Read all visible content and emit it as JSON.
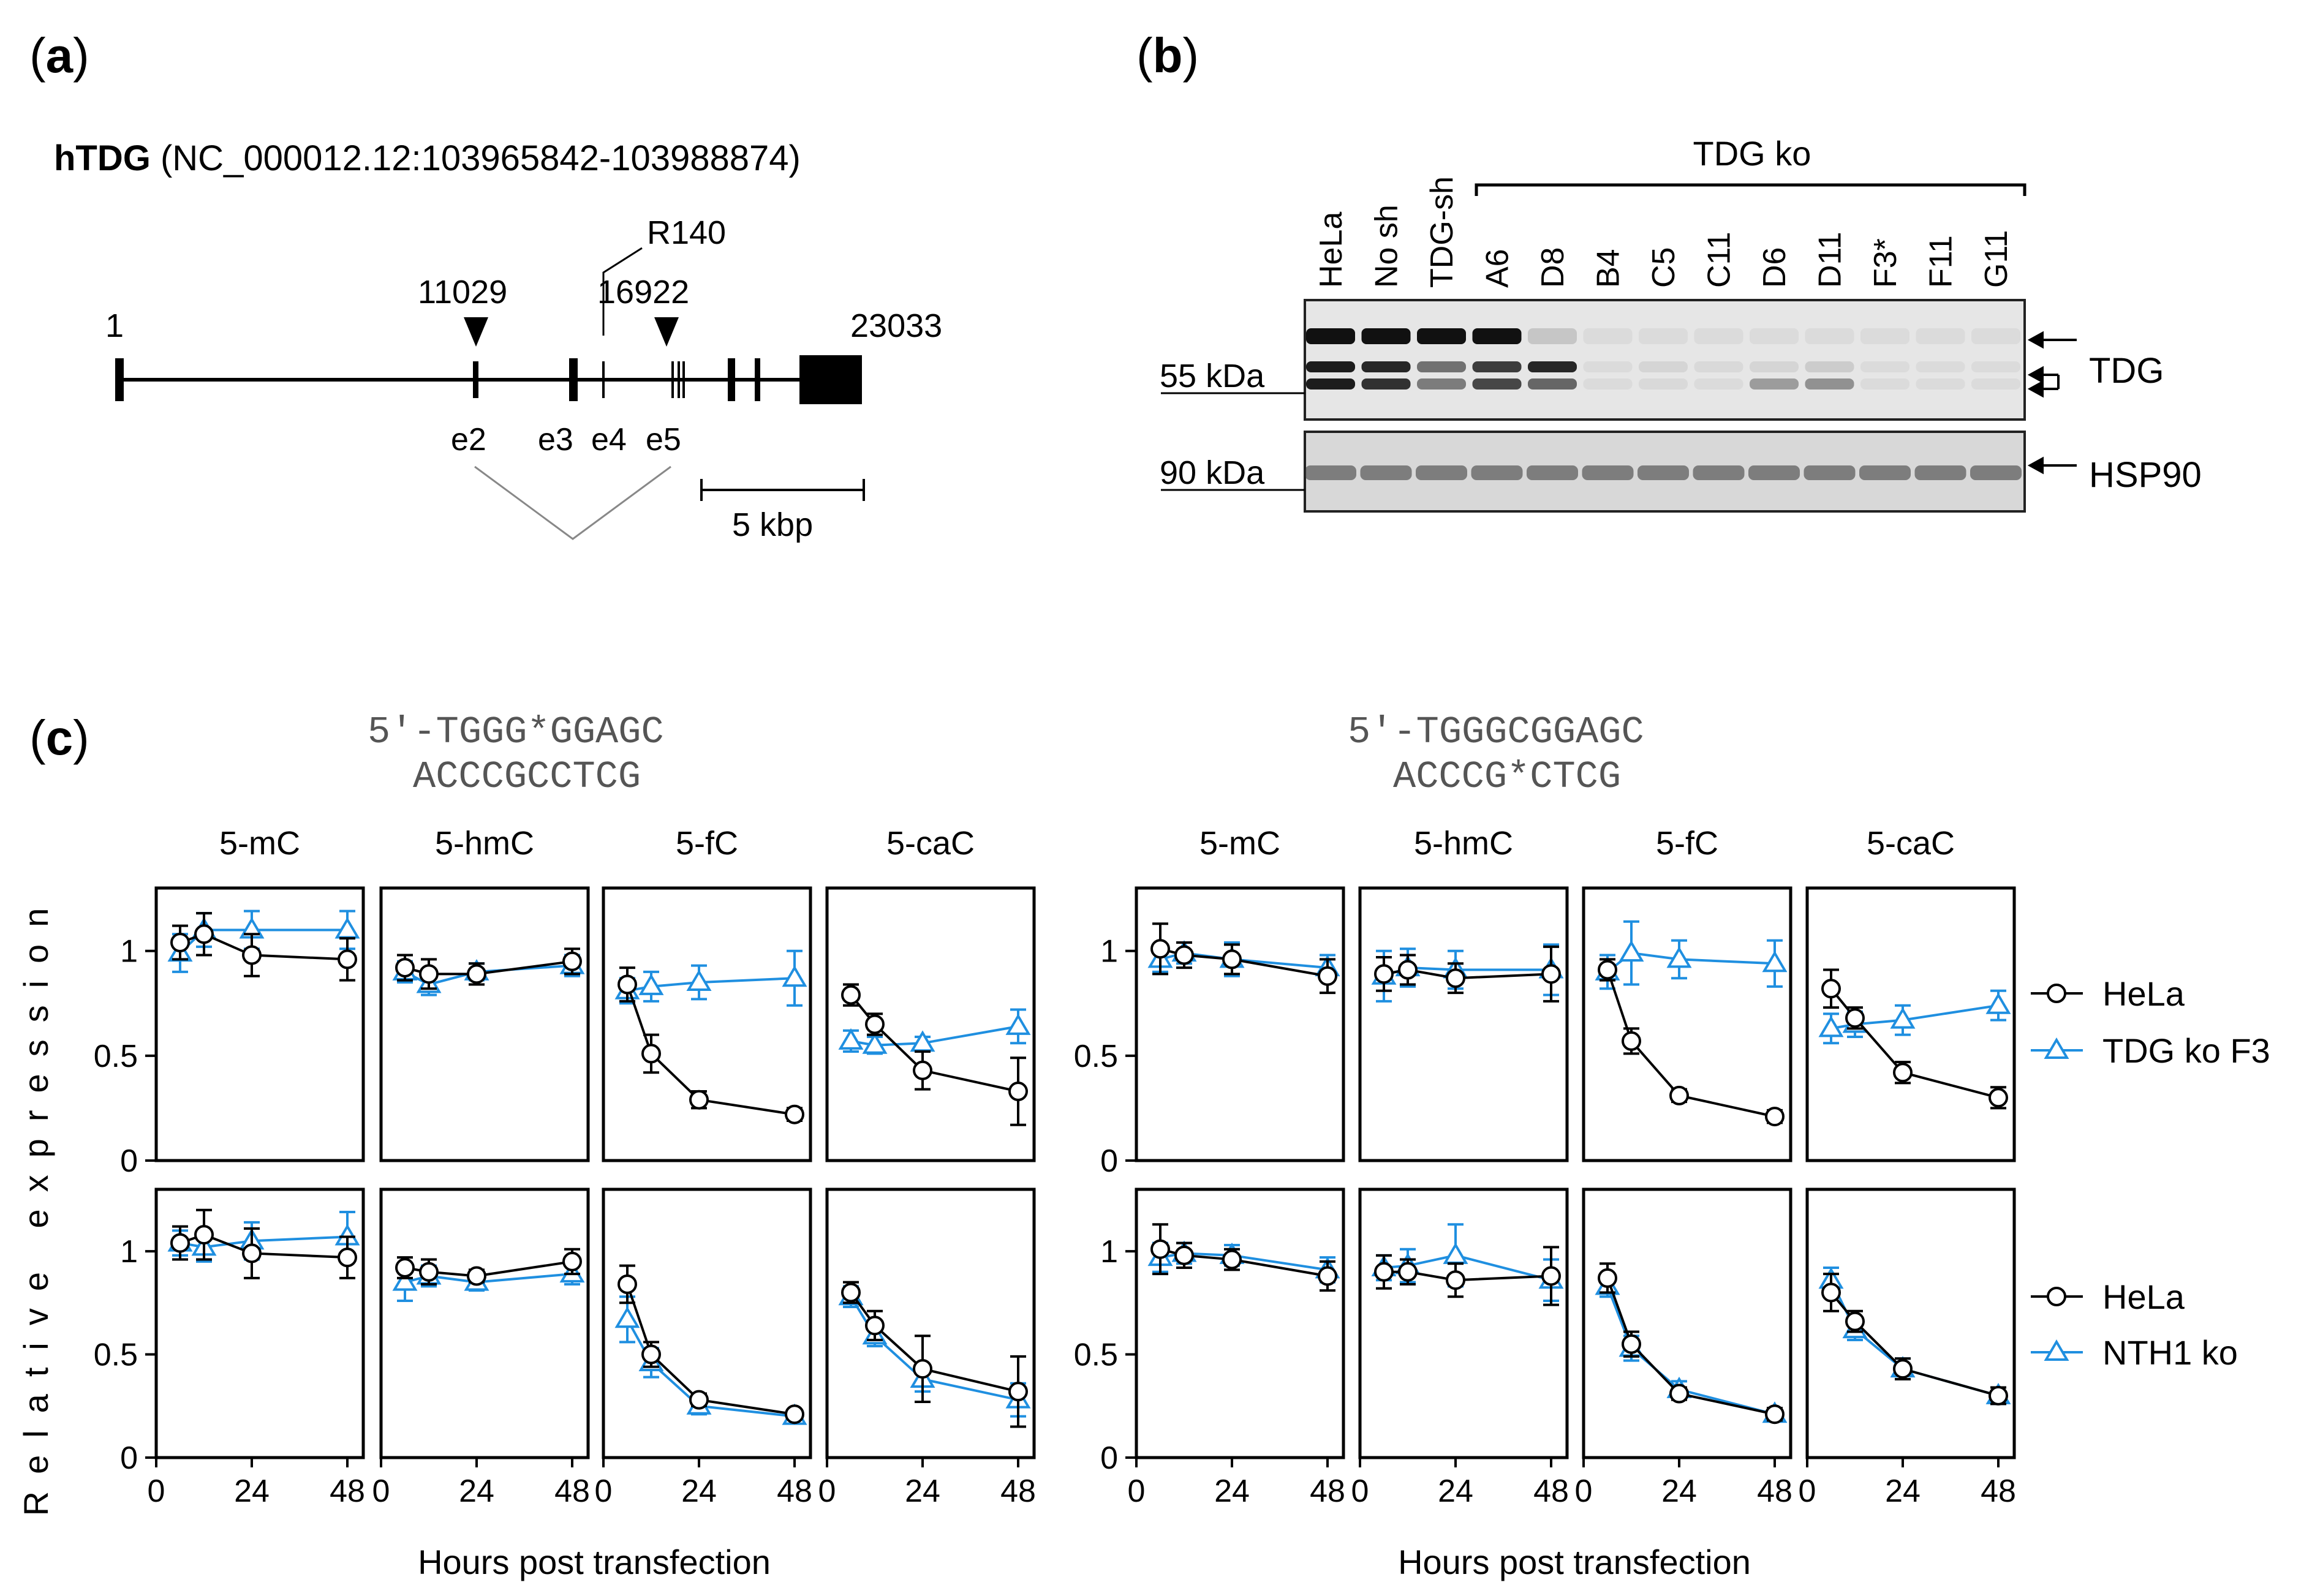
{
  "panel_a": {
    "label_letter": "a",
    "gene_name": "hTDG",
    "gene_coords": "(NC_000012.12:103965842-103988874)",
    "start_pos": "1",
    "end_pos": "23033",
    "marker_1": "11029",
    "marker_2": "16922",
    "residue": "R140",
    "exons": [
      "e2",
      "e3",
      "e4",
      "e5"
    ],
    "scale_label": "5 kbp"
  },
  "panel_b": {
    "label_letter": "b",
    "group_label": "TDG ko",
    "lanes": [
      "HeLa",
      "No sh",
      "TDG-sh",
      "A6",
      "D8",
      "B4",
      "C5",
      "C11",
      "D6",
      "D11",
      "F3*",
      "F11",
      "G11"
    ],
    "upper_blot_size": "55 kDa",
    "lower_blot_size": "90 kDa",
    "upper_blot_protein": "TDG",
    "lower_blot_protein": "HSP90"
  },
  "panel_c": {
    "label_letter": "c",
    "seq_left_top": "5′-TGGG*GGAGC",
    "seq_left_bottom": "ACCCGCCTCG",
    "seq_right_top": "5′-TGGGCGGAGC",
    "seq_right_bottom": "ACCCG*CTCG",
    "ylabel": "Relative expression",
    "xlabel": "Hours post transfection",
    "legend_top": [
      "HeLa",
      "TDG ko F3"
    ],
    "legend_bottom": [
      "HeLa",
      "NTH1 ko"
    ]
  },
  "colors": {
    "black": "#000000",
    "blue": "#1f8fe0"
  },
  "chart_data": [
    {
      "type": "line",
      "title": "5-mC",
      "strand_group": "left",
      "row": "top",
      "xlabel": "Hours post transfection",
      "ylabel": "Relative expression",
      "x": [
        6,
        12,
        24,
        48
      ],
      "xticks": [
        0,
        24,
        48
      ],
      "xlim": [
        0,
        52
      ],
      "yticks": [
        0,
        0.5,
        1
      ],
      "ylim": [
        0,
        1.3
      ],
      "series": [
        {
          "name": "HeLa",
          "marker": "circle",
          "values": [
            1.04,
            1.08,
            0.98,
            0.96
          ],
          "errors": [
            0.08,
            0.1,
            0.1,
            0.1
          ]
        },
        {
          "name": "TDG ko F3",
          "marker": "triangle",
          "values": [
            0.99,
            1.1,
            1.1,
            1.1
          ],
          "errors": [
            0.09,
            0.08,
            0.09,
            0.09
          ]
        }
      ]
    },
    {
      "type": "line",
      "title": "5-hmC",
      "strand_group": "left",
      "row": "top",
      "xlabel": "Hours post transfection",
      "ylabel": "Relative expression",
      "x": [
        6,
        12,
        24,
        48
      ],
      "xticks": [
        0,
        24,
        48
      ],
      "xlim": [
        0,
        52
      ],
      "yticks": [
        0,
        0.5,
        1
      ],
      "ylim": [
        0,
        1.3
      ],
      "series": [
        {
          "name": "HeLa",
          "marker": "circle",
          "values": [
            0.92,
            0.89,
            0.89,
            0.95
          ],
          "errors": [
            0.06,
            0.07,
            0.05,
            0.06
          ]
        },
        {
          "name": "TDG ko F3",
          "marker": "triangle",
          "values": [
            0.9,
            0.84,
            0.9,
            0.93
          ],
          "errors": [
            0.05,
            0.05,
            0.04,
            0.05
          ]
        }
      ]
    },
    {
      "type": "line",
      "title": "5-fC",
      "strand_group": "left",
      "row": "top",
      "xlabel": "Hours post transfection",
      "ylabel": "Relative expression",
      "x": [
        6,
        12,
        24,
        48
      ],
      "xticks": [
        0,
        24,
        48
      ],
      "xlim": [
        0,
        52
      ],
      "yticks": [
        0,
        0.5,
        1
      ],
      "ylim": [
        0,
        1.3
      ],
      "series": [
        {
          "name": "HeLa",
          "marker": "circle",
          "values": [
            0.84,
            0.51,
            0.29,
            0.22
          ],
          "errors": [
            0.08,
            0.09,
            0.04,
            0.03
          ]
        },
        {
          "name": "TDG ko F3",
          "marker": "triangle",
          "values": [
            0.81,
            0.83,
            0.85,
            0.87
          ],
          "errors": [
            0.06,
            0.07,
            0.08,
            0.13
          ]
        }
      ]
    },
    {
      "type": "line",
      "title": "5-caC",
      "strand_group": "left",
      "row": "top",
      "xlabel": "Hours post transfection",
      "ylabel": "Relative expression",
      "x": [
        6,
        12,
        24,
        48
      ],
      "xticks": [
        0,
        24,
        48
      ],
      "xlim": [
        0,
        52
      ],
      "yticks": [
        0,
        0.5,
        1
      ],
      "ylim": [
        0,
        1.3
      ],
      "series": [
        {
          "name": "HeLa",
          "marker": "circle",
          "values": [
            0.79,
            0.65,
            0.43,
            0.33
          ],
          "errors": [
            0.05,
            0.05,
            0.09,
            0.16
          ]
        },
        {
          "name": "TDG ko F3",
          "marker": "triangle",
          "values": [
            0.57,
            0.55,
            0.56,
            0.64
          ],
          "errors": [
            0.05,
            0.04,
            0.03,
            0.08
          ]
        }
      ]
    },
    {
      "type": "line",
      "title": "5-mC",
      "strand_group": "right",
      "row": "top",
      "xlabel": "Hours post transfection",
      "ylabel": "Relative expression",
      "x": [
        6,
        12,
        24,
        48
      ],
      "xticks": [
        0,
        24,
        48
      ],
      "xlim": [
        0,
        52
      ],
      "yticks": [
        0,
        0.5,
        1
      ],
      "ylim": [
        0,
        1.3
      ],
      "series": [
        {
          "name": "HeLa",
          "marker": "circle",
          "values": [
            1.01,
            0.98,
            0.96,
            0.88
          ],
          "errors": [
            0.12,
            0.06,
            0.07,
            0.08
          ]
        },
        {
          "name": "TDG ko F3",
          "marker": "triangle",
          "values": [
            0.96,
            0.99,
            0.96,
            0.92
          ],
          "errors": [
            0.06,
            0.05,
            0.08,
            0.06
          ]
        }
      ]
    },
    {
      "type": "line",
      "title": "5-hmC",
      "strand_group": "right",
      "row": "top",
      "xlabel": "Hours post transfection",
      "ylabel": "Relative expression",
      "x": [
        6,
        12,
        24,
        48
      ],
      "xticks": [
        0,
        24,
        48
      ],
      "xlim": [
        0,
        52
      ],
      "yticks": [
        0,
        0.5,
        1
      ],
      "ylim": [
        0,
        1.3
      ],
      "series": [
        {
          "name": "HeLa",
          "marker": "circle",
          "values": [
            0.89,
            0.91,
            0.87,
            0.89
          ],
          "errors": [
            0.08,
            0.07,
            0.07,
            0.13
          ]
        },
        {
          "name": "TDG ko F3",
          "marker": "triangle",
          "values": [
            0.88,
            0.92,
            0.91,
            0.91
          ],
          "errors": [
            0.12,
            0.09,
            0.09,
            0.12
          ]
        }
      ]
    },
    {
      "type": "line",
      "title": "5-fC",
      "strand_group": "right",
      "row": "top",
      "xlabel": "Hours post transfection",
      "ylabel": "Relative expression",
      "x": [
        6,
        12,
        24,
        48
      ],
      "xticks": [
        0,
        24,
        48
      ],
      "xlim": [
        0,
        52
      ],
      "yticks": [
        0,
        0.5,
        1
      ],
      "ylim": [
        0,
        1.3
      ],
      "series": [
        {
          "name": "HeLa",
          "marker": "circle",
          "values": [
            0.91,
            0.57,
            0.31,
            0.21
          ],
          "errors": [
            0.05,
            0.06,
            0.03,
            0.03
          ]
        },
        {
          "name": "TDG ko F3",
          "marker": "triangle",
          "values": [
            0.9,
            0.99,
            0.96,
            0.94
          ],
          "errors": [
            0.08,
            0.15,
            0.09,
            0.11
          ]
        }
      ]
    },
    {
      "type": "line",
      "title": "5-caC",
      "strand_group": "right",
      "row": "top",
      "xlabel": "Hours post transfection",
      "ylabel": "Relative expression",
      "x": [
        6,
        12,
        24,
        48
      ],
      "xticks": [
        0,
        24,
        48
      ],
      "xlim": [
        0,
        52
      ],
      "yticks": [
        0,
        0.5,
        1
      ],
      "ylim": [
        0,
        1.3
      ],
      "series": [
        {
          "name": "HeLa",
          "marker": "circle",
          "values": [
            0.82,
            0.68,
            0.42,
            0.3
          ],
          "errors": [
            0.09,
            0.05,
            0.05,
            0.05
          ]
        },
        {
          "name": "TDG ko F3",
          "marker": "triangle",
          "values": [
            0.63,
            0.65,
            0.67,
            0.74
          ],
          "errors": [
            0.07,
            0.06,
            0.07,
            0.07
          ]
        }
      ]
    },
    {
      "type": "line",
      "title": "5-mC",
      "strand_group": "left",
      "row": "bottom",
      "xlabel": "Hours post transfection",
      "ylabel": "Relative expression",
      "x": [
        6,
        12,
        24,
        48
      ],
      "xticks": [
        0,
        24,
        48
      ],
      "xlim": [
        0,
        52
      ],
      "yticks": [
        0,
        0.5,
        1
      ],
      "ylim": [
        0,
        1.3
      ],
      "series": [
        {
          "name": "HeLa",
          "marker": "circle",
          "values": [
            1.04,
            1.08,
            0.99,
            0.97
          ],
          "errors": [
            0.08,
            0.12,
            0.12,
            0.1
          ]
        },
        {
          "name": "NTH1 ko",
          "marker": "triangle",
          "values": [
            1.04,
            1.02,
            1.05,
            1.07
          ],
          "errors": [
            0.06,
            0.07,
            0.09,
            0.12
          ]
        }
      ]
    },
    {
      "type": "line",
      "title": "5-hmC",
      "strand_group": "left",
      "row": "bottom",
      "xlabel": "Hours post transfection",
      "ylabel": "Relative expression",
      "x": [
        6,
        12,
        24,
        48
      ],
      "xticks": [
        0,
        24,
        48
      ],
      "xlim": [
        0,
        52
      ],
      "yticks": [
        0,
        0.5,
        1
      ],
      "ylim": [
        0,
        1.3
      ],
      "series": [
        {
          "name": "HeLa",
          "marker": "circle",
          "values": [
            0.92,
            0.9,
            0.88,
            0.95
          ],
          "errors": [
            0.05,
            0.06,
            0.03,
            0.06
          ]
        },
        {
          "name": "NTH1 ko",
          "marker": "triangle",
          "values": [
            0.85,
            0.88,
            0.85,
            0.89
          ],
          "errors": [
            0.09,
            0.05,
            0.04,
            0.05
          ]
        }
      ]
    },
    {
      "type": "line",
      "title": "5-fC",
      "strand_group": "left",
      "row": "bottom",
      "xlabel": "Hours post transfection",
      "ylabel": "Relative expression",
      "x": [
        6,
        12,
        24,
        48
      ],
      "xticks": [
        0,
        24,
        48
      ],
      "xlim": [
        0,
        52
      ],
      "yticks": [
        0,
        0.5,
        1
      ],
      "ylim": [
        0,
        1.3
      ],
      "series": [
        {
          "name": "HeLa",
          "marker": "circle",
          "values": [
            0.84,
            0.5,
            0.28,
            0.21
          ],
          "errors": [
            0.09,
            0.06,
            0.03,
            0.02
          ]
        },
        {
          "name": "NTH1 ko",
          "marker": "triangle",
          "values": [
            0.67,
            0.46,
            0.25,
            0.2
          ],
          "errors": [
            0.11,
            0.07,
            0.04,
            0.03
          ]
        }
      ]
    },
    {
      "type": "line",
      "title": "5-caC",
      "strand_group": "left",
      "row": "bottom",
      "xlabel": "Hours post transfection",
      "ylabel": "Relative expression",
      "x": [
        6,
        12,
        24,
        48
      ],
      "xticks": [
        0,
        24,
        48
      ],
      "xlim": [
        0,
        52
      ],
      "yticks": [
        0,
        0.5,
        1
      ],
      "ylim": [
        0,
        1.3
      ],
      "series": [
        {
          "name": "HeLa",
          "marker": "circle",
          "values": [
            0.8,
            0.64,
            0.43,
            0.32
          ],
          "errors": [
            0.05,
            0.07,
            0.16,
            0.17
          ]
        },
        {
          "name": "NTH1 ko",
          "marker": "triangle",
          "values": [
            0.78,
            0.59,
            0.38,
            0.28
          ],
          "errors": [
            0.05,
            0.05,
            0.06,
            0.08
          ]
        }
      ]
    },
    {
      "type": "line",
      "title": "5-mC",
      "strand_group": "right",
      "row": "bottom",
      "xlabel": "Hours post transfection",
      "ylabel": "Relative expression",
      "x": [
        6,
        12,
        24,
        48
      ],
      "xticks": [
        0,
        24,
        48
      ],
      "xlim": [
        0,
        52
      ],
      "yticks": [
        0,
        0.5,
        1
      ],
      "ylim": [
        0,
        1.3
      ],
      "series": [
        {
          "name": "HeLa",
          "marker": "circle",
          "values": [
            1.01,
            0.98,
            0.96,
            0.88
          ],
          "errors": [
            0.12,
            0.06,
            0.05,
            0.07
          ]
        },
        {
          "name": "NTH1 ko",
          "marker": "triangle",
          "values": [
            0.97,
            0.99,
            0.98,
            0.91
          ],
          "errors": [
            0.07,
            0.05,
            0.05,
            0.06
          ]
        }
      ]
    },
    {
      "type": "line",
      "title": "5-hmC",
      "strand_group": "right",
      "row": "bottom",
      "xlabel": "Hours post transfection",
      "ylabel": "Relative expression",
      "x": [
        6,
        12,
        24,
        48
      ],
      "xticks": [
        0,
        24,
        48
      ],
      "xlim": [
        0,
        52
      ],
      "yticks": [
        0,
        0.5,
        1
      ],
      "ylim": [
        0,
        1.3
      ],
      "series": [
        {
          "name": "HeLa",
          "marker": "circle",
          "values": [
            0.9,
            0.9,
            0.86,
            0.88
          ],
          "errors": [
            0.08,
            0.06,
            0.08,
            0.14
          ]
        },
        {
          "name": "NTH1 ko",
          "marker": "triangle",
          "values": [
            0.92,
            0.93,
            0.98,
            0.86
          ],
          "errors": [
            0.06,
            0.08,
            0.15,
            0.1
          ]
        }
      ]
    },
    {
      "type": "line",
      "title": "5-fC",
      "strand_group": "right",
      "row": "bottom",
      "xlabel": "Hours post transfection",
      "ylabel": "Relative expression",
      "x": [
        6,
        12,
        24,
        48
      ],
      "xticks": [
        0,
        24,
        48
      ],
      "xlim": [
        0,
        52
      ],
      "yticks": [
        0,
        0.5,
        1
      ],
      "ylim": [
        0,
        1.3
      ],
      "series": [
        {
          "name": "HeLa",
          "marker": "circle",
          "values": [
            0.87,
            0.55,
            0.31,
            0.21
          ],
          "errors": [
            0.07,
            0.06,
            0.03,
            0.03
          ]
        },
        {
          "name": "NTH1 ko",
          "marker": "triangle",
          "values": [
            0.83,
            0.53,
            0.33,
            0.21
          ],
          "errors": [
            0.05,
            0.06,
            0.04,
            0.03
          ]
        }
      ]
    },
    {
      "type": "line",
      "title": "5-caC",
      "strand_group": "right",
      "row": "bottom",
      "xlabel": "Hours post transfection",
      "ylabel": "Relative expression",
      "x": [
        6,
        12,
        24,
        48
      ],
      "xticks": [
        0,
        24,
        48
      ],
      "xlim": [
        0,
        52
      ],
      "yticks": [
        0,
        0.5,
        1
      ],
      "ylim": [
        0,
        1.3
      ],
      "series": [
        {
          "name": "HeLa",
          "marker": "circle",
          "values": [
            0.8,
            0.66,
            0.43,
            0.3
          ],
          "errors": [
            0.09,
            0.05,
            0.05,
            0.04
          ]
        },
        {
          "name": "NTH1 ko",
          "marker": "triangle",
          "values": [
            0.86,
            0.62,
            0.43,
            0.3
          ],
          "errors": [
            0.06,
            0.05,
            0.05,
            0.04
          ]
        }
      ]
    }
  ]
}
